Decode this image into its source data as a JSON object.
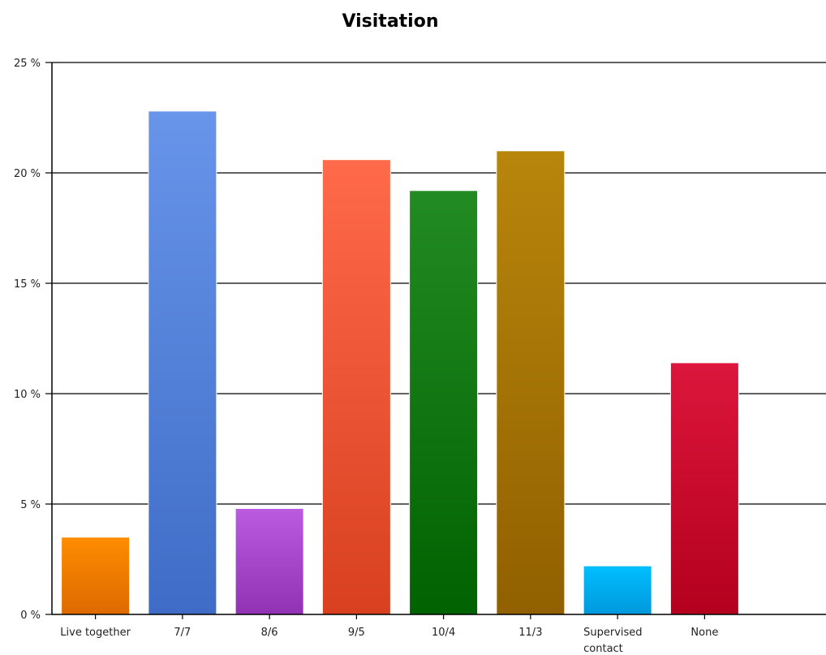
{
  "chart_data": {
    "type": "bar",
    "title": "Visitation",
    "xlabel": "",
    "ylabel": "",
    "ylim": [
      0,
      25
    ],
    "yticks": [
      0,
      5,
      10,
      15,
      20,
      25
    ],
    "ytick_labels": [
      "0 %",
      "5 %",
      "10 %",
      "15 %",
      "20 %",
      "25 %"
    ],
    "grid": true,
    "legend": "none",
    "categories": [
      "Live together",
      "7/7",
      "8/6",
      "9/5",
      "10/4",
      "11/3",
      "Supervised contact",
      "None"
    ],
    "category_lines": [
      [
        "Live together"
      ],
      [
        "7/7"
      ],
      [
        "8/6"
      ],
      [
        "9/5"
      ],
      [
        "10/4"
      ],
      [
        "11/3"
      ],
      [
        "Supervised",
        "contact"
      ],
      [
        "None"
      ]
    ],
    "values": [
      3.5,
      22.8,
      4.8,
      20.6,
      19.2,
      21.0,
      2.2,
      11.4
    ],
    "colors": [
      [
        "#ff8c00",
        "#dd6a00"
      ],
      [
        "#6895ea",
        "#3f6cc6"
      ],
      [
        "#bb5be0",
        "#9131b3"
      ],
      [
        "#ff6a4b",
        "#d8401f"
      ],
      [
        "#238b23",
        "#006200"
      ],
      [
        "#b8860b",
        "#916000"
      ],
      [
        "#00bfff",
        "#0099dd"
      ],
      [
        "#dc163c",
        "#b4001e"
      ]
    ]
  }
}
